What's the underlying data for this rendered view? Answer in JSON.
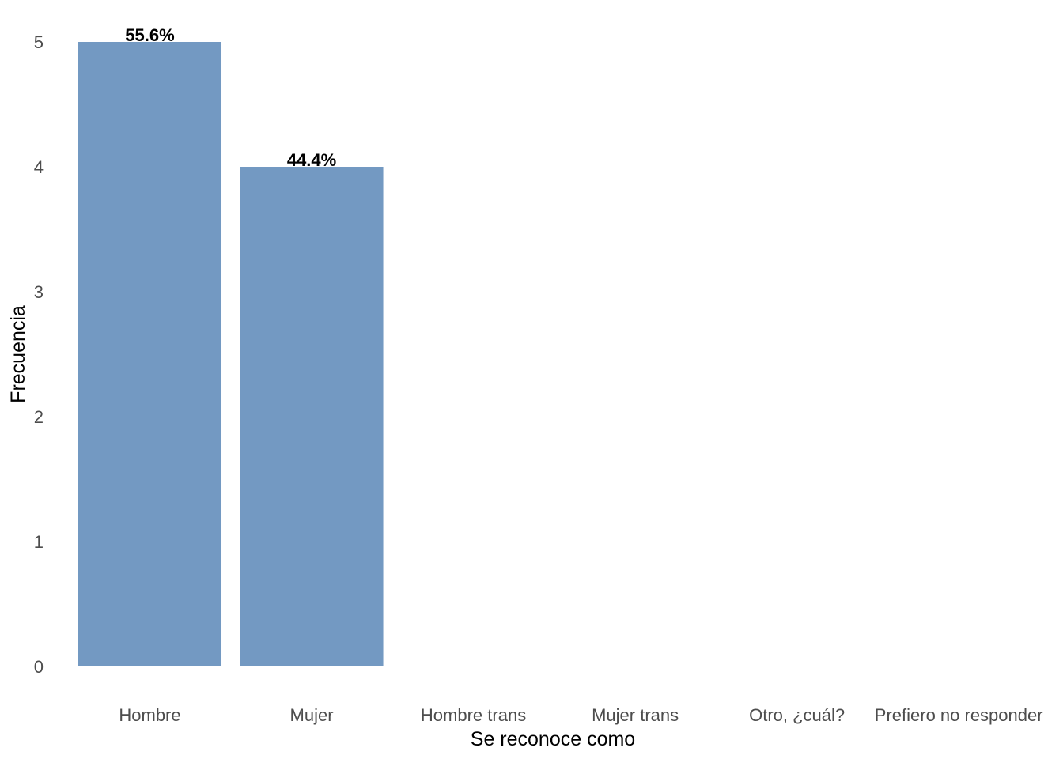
{
  "chart_data": {
    "type": "bar",
    "title": "",
    "xlabel": "Se reconoce como",
    "ylabel": "Frecuencia",
    "categories": [
      "Hombre",
      "Mujer",
      "Hombre trans",
      "Mujer trans",
      "Otro, ¿cuál?",
      "Prefiero no responder"
    ],
    "values": [
      5,
      4,
      0,
      0,
      0,
      0
    ],
    "data_labels": [
      "55.6%",
      "44.4%",
      "",
      "",
      "",
      ""
    ],
    "ylim": [
      0,
      5
    ],
    "yticks": [
      0,
      1,
      2,
      3,
      4,
      5
    ],
    "grid": false,
    "legend": "none",
    "bar_color": "#7399c2"
  }
}
